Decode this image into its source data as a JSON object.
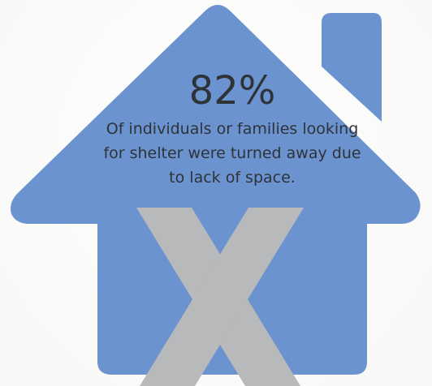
{
  "infographic": {
    "statistic": "82%",
    "caption": "Of individuals or families looking for shelter were turned away due to lack of space."
  },
  "colors": {
    "house": "#6b93cf",
    "cross": "#b8b9bb",
    "text": "#2e3338"
  },
  "icons": {
    "house": "house-icon",
    "cross": "x-mark-icon"
  }
}
